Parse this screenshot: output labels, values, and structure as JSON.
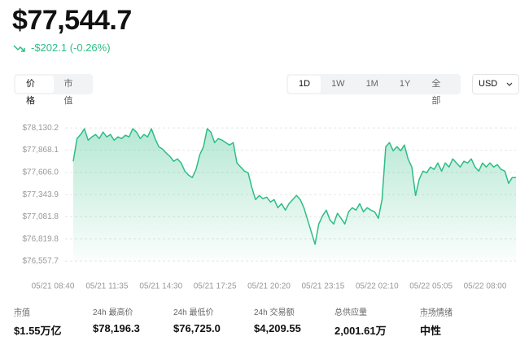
{
  "header": {
    "price": "$77,544.7",
    "change": "-$202.1 (-0.26%)"
  },
  "tabs": [
    "价格",
    "市值"
  ],
  "ranges": [
    "1D",
    "1W",
    "1M",
    "1Y",
    "全部"
  ],
  "currency": "USD",
  "chart_data": {
    "type": "area",
    "color": "#2ebd85",
    "ylim": [
      76557.7,
      78200
    ],
    "yticks": [
      {
        "value": 78130.2,
        "label": "$78,130.2"
      },
      {
        "value": 77868.1,
        "label": "$77,868.1"
      },
      {
        "value": 77606.0,
        "label": "$77,606.0"
      },
      {
        "value": 77343.9,
        "label": "$77,343.9"
      },
      {
        "value": 77081.8,
        "label": "$77,081.8"
      },
      {
        "value": 76819.8,
        "label": "$76,819.8"
      },
      {
        "value": 76557.7,
        "label": "$76,557.7"
      }
    ],
    "grid": true,
    "x_labels": [
      "05/21 08:40",
      "05/21 11:35",
      "05/21 14:30",
      "05/21 17:25",
      "05/21 20:20",
      "05/21 23:15",
      "05/22 02:10",
      "05/22 05:05",
      "05/22 08:00"
    ],
    "values": [
      77737,
      78005,
      78053,
      78121,
      77986,
      78025,
      78053,
      78005,
      78082,
      78025,
      78053,
      77986,
      78025,
      78005,
      78044,
      78025,
      78121,
      78082,
      78005,
      78053,
      78025,
      78121,
      78005,
      77909,
      77881,
      77833,
      77794,
      77737,
      77765,
      77717,
      77621,
      77573,
      77545,
      77641,
      77813,
      77909,
      78121,
      78082,
      77957,
      78005,
      77986,
      77957,
      77929,
      77957,
      77717,
      77669,
      77621,
      77602,
      77429,
      77285,
      77333,
      77295,
      77314,
      77257,
      77285,
      77189,
      77237,
      77160,
      77237,
      77285,
      77333,
      77285,
      77189,
      77045,
      76901,
      76757,
      76997,
      77093,
      77160,
      77045,
      76997,
      77122,
      77064,
      76997,
      77141,
      77189,
      77160,
      77237,
      77141,
      77189,
      77160,
      77141,
      77064,
      77285,
      77909,
      77957,
      77861,
      77909,
      77861,
      77929,
      77765,
      77669,
      77333,
      77525,
      77621,
      77602,
      77669,
      77641,
      77717,
      77621,
      77717,
      77669,
      77765,
      77717,
      77669,
      77737,
      77717,
      77765,
      77669,
      77621,
      77717,
      77669,
      77717,
      77669,
      77698,
      77641,
      77621,
      77477,
      77545,
      77545
    ]
  },
  "stats": [
    {
      "label": "市值",
      "value": "$1.55万亿"
    },
    {
      "label": "24h 最高价",
      "value": "$78,196.3"
    },
    {
      "label": "24h 最低价",
      "value": "$76,725.0"
    },
    {
      "label": "24h 交易额",
      "value": "$4,209.55"
    },
    {
      "label": "总供应量",
      "value": "2,001.61万"
    },
    {
      "label": "市场情绪",
      "value": "中性"
    }
  ]
}
